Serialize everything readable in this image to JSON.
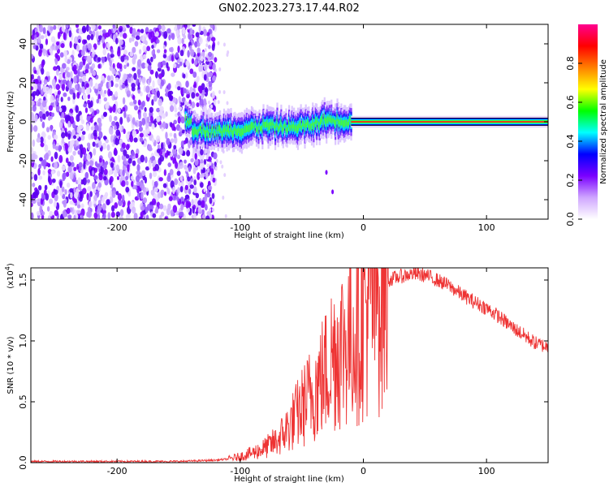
{
  "title": "GN02.2023.273.17.44.R02",
  "chart_data": [
    {
      "type": "heatmap",
      "xlabel": "Height of straight line (km)",
      "ylabel": "Frequency (Hz)",
      "xlim": [
        -270,
        150
      ],
      "ylim": [
        -50,
        50
      ],
      "xticks": [
        -200,
        -100,
        0,
        100
      ],
      "yticks": [
        -40,
        -20,
        0,
        20,
        40
      ],
      "colorbar": {
        "label": "Normalized spectral amplitude",
        "range": [
          0,
          1
        ],
        "ticks": [
          "0.0",
          "0.2",
          "0.4",
          "0.6",
          "0.8"
        ],
        "colors": [
          "#ffffff",
          "#cfa6ff",
          "#7a00ff",
          "#0000ff",
          "#00ffff",
          "#00ff00",
          "#ffff00",
          "#ff8000",
          "#ff0000",
          "#ff0090"
        ]
      },
      "features": {
        "noise_region_x": [
          -270,
          -120
        ],
        "signal_track": [
          {
            "x": -140,
            "y": -4
          },
          {
            "x": -120,
            "y": -5
          },
          {
            "x": -100,
            "y": -4
          },
          {
            "x": -80,
            "y": -2
          },
          {
            "x": -60,
            "y": -3
          },
          {
            "x": -45,
            "y": -2
          },
          {
            "x": -30,
            "y": 1
          },
          {
            "x": -10,
            "y": 0
          },
          {
            "x": 0,
            "y": 0
          },
          {
            "x": 150,
            "y": 0
          }
        ],
        "constant_line_x": [
          -10,
          150
        ],
        "outlier_points": [
          {
            "x": -30,
            "y": -26
          },
          {
            "x": -25,
            "y": -36
          }
        ]
      }
    },
    {
      "type": "line",
      "xlabel": "Height of straight line (km)",
      "ylabel": "SNR (10 * v/v)",
      "multiplier": "(x10",
      "multiplier_exp": "4",
      "multiplier_close": ")",
      "xlim": [
        -270,
        150
      ],
      "ylim": [
        0,
        1.6
      ],
      "xticks": [
        -200,
        -100,
        0,
        100
      ],
      "yticks": [
        "0.0",
        "0.5",
        "1.0",
        "1.5"
      ],
      "line_color": "#ee3333",
      "series": [
        {
          "x": [
            -270,
            -200,
            -150,
            -120,
            -110,
            -100,
            -90,
            -80,
            -70,
            -60,
            -50,
            -40,
            -30,
            -25,
            -20,
            -10,
            0,
            10,
            20,
            30,
            40,
            50,
            60,
            70,
            80,
            90,
            100,
            110,
            120,
            130,
            140,
            150
          ],
          "y": [
            0.01,
            0.01,
            0.01,
            0.02,
            0.03,
            0.05,
            0.08,
            0.12,
            0.18,
            0.3,
            0.45,
            0.6,
            0.75,
            0.9,
            0.95,
            1.05,
            1.25,
            1.4,
            1.5,
            1.53,
            1.55,
            1.54,
            1.5,
            1.45,
            1.38,
            1.32,
            1.27,
            1.2,
            1.12,
            1.05,
            0.98,
            0.95
          ]
        }
      ]
    }
  ]
}
